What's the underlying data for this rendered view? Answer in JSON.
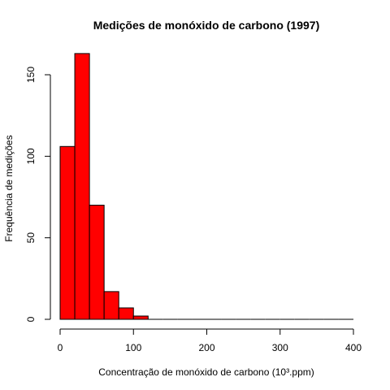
{
  "chart_data": {
    "type": "bar",
    "title": "Medições de monóxido de carbono (1997)",
    "xlabel": "Concentração de monóxido de carbono (10³.ppm)",
    "ylabel": "Frequência de medições",
    "bin_edges": [
      0,
      20,
      40,
      60,
      80,
      100,
      120,
      140,
      160,
      180,
      200,
      220,
      240,
      260,
      280,
      300,
      320,
      340,
      360,
      380,
      400
    ],
    "values": [
      106,
      163,
      70,
      17,
      7,
      2,
      0,
      0,
      0,
      0,
      0,
      0,
      0,
      0,
      0,
      0,
      0,
      0,
      0,
      0
    ],
    "xlim": [
      0,
      400
    ],
    "ylim": [
      0,
      170
    ],
    "x_ticks": [
      0,
      100,
      200,
      300,
      400
    ],
    "y_ticks": [
      0,
      50,
      100,
      150
    ],
    "bar_color": "#FF0000",
    "grid": false
  }
}
